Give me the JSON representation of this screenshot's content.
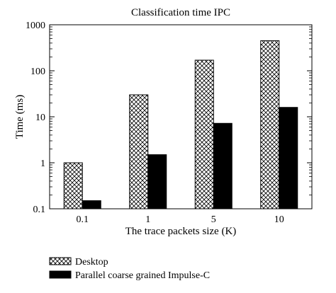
{
  "chart_data": {
    "type": "bar",
    "title": "Classification time IPC",
    "xlabel": "The trace packets size (K)",
    "ylabel": "Time (ms)",
    "yscale": "log",
    "ylim": [
      0.1,
      1000
    ],
    "yticks": [
      "0.1",
      "1",
      "10",
      "100",
      "1000"
    ],
    "categories": [
      "0.1",
      "1",
      "5",
      "10"
    ],
    "series": [
      {
        "name": "Desktop",
        "values": [
          1.0,
          30,
          170,
          450
        ],
        "pattern": "crosshatch",
        "color": "#ffffff"
      },
      {
        "name": "Parallel coarse grained Impulse-C",
        "values": [
          0.15,
          1.5,
          7.2,
          16
        ],
        "pattern": "solid",
        "color": "#000000"
      }
    ],
    "grid": false,
    "legend_position": "bottom-left"
  }
}
